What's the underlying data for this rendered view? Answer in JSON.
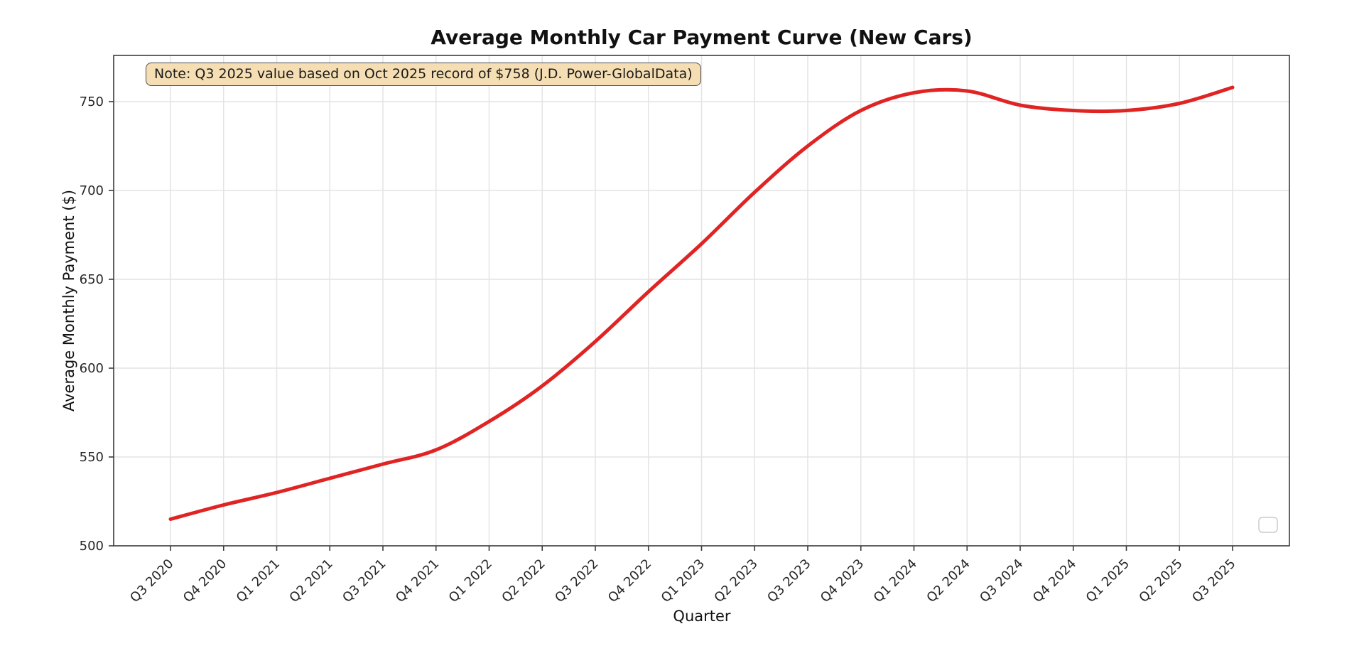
{
  "page": {
    "background": "#ffffff"
  },
  "chart_data": {
    "type": "line",
    "title": "Average Monthly Car Payment Curve (New Cars)",
    "xlabel": "Quarter",
    "ylabel": "Average Monthly Payment ($)",
    "annotation": "Note: Q3 2025 value based on Oct 2025 record of $758 (J.D. Power-GlobalData)",
    "categories": [
      "Q3 2020",
      "Q4 2020",
      "Q1 2021",
      "Q2 2021",
      "Q3 2021",
      "Q4 2021",
      "Q1 2022",
      "Q2 2022",
      "Q3 2022",
      "Q4 2022",
      "Q1 2023",
      "Q2 2023",
      "Q3 2023",
      "Q4 2023",
      "Q1 2024",
      "Q2 2024",
      "Q3 2024",
      "Q4 2024",
      "Q1 2025",
      "Q2 2025",
      "Q3 2025"
    ],
    "series": [
      {
        "name": "Average Monthly Payment",
        "color": "#e02424",
        "values": [
          515,
          523,
          530,
          538,
          546,
          554,
          570,
          590,
          615,
          643,
          670,
          699,
          725,
          745,
          755,
          756,
          748,
          745,
          745,
          749,
          758
        ]
      }
    ],
    "yticks": [
      500,
      550,
      600,
      650,
      700,
      750
    ],
    "ylim": [
      500,
      776
    ],
    "grid": true,
    "legend_position": "lower right",
    "legend_entries": [],
    "colors": {
      "grid": "#e4e4e4",
      "spine": "#3c3c3c",
      "tick_label": "#262626",
      "annotation_bg": "#f5deb3",
      "annotation_border": "#4a4a4a",
      "annotation_text": "#1a1a1a",
      "legend_border": "#cccccc",
      "legend_bg": "#ffffff"
    },
    "line_width": 5
  }
}
